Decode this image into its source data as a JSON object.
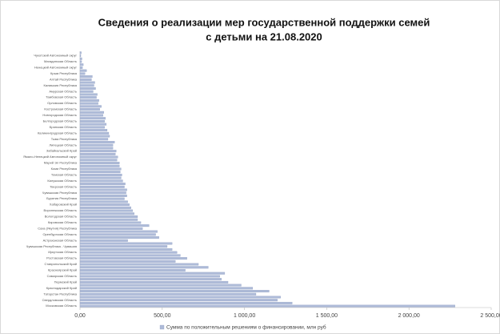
{
  "chart_data": {
    "type": "barh",
    "title": [
      "Сведения о реализации мер государственной поддержки семей",
      "с детьми на 21.08.2020"
    ],
    "categories": [
      null,
      "Чукотский Автономный округ",
      null,
      "Магаданская Область",
      null,
      "Ненецкий Автономный округ",
      null,
      "Крым Республика",
      null,
      "Алтай Республика",
      null,
      "Калмыкия Республика",
      null,
      "Амурская Область",
      null,
      "Тамбовская Область",
      null,
      "Орловская Область",
      null,
      "Костромская Область",
      null,
      "Новгородская Область",
      null,
      "Белгородская Область",
      null,
      "Брянская Область",
      null,
      "Калининградская Область",
      null,
      "Тыва Республика",
      null,
      "Липецкая Область",
      null,
      "Забайкальский Край",
      null,
      "Ямало-Ненецкий Автономный округ",
      null,
      "Марий Эл Республика",
      null,
      "Коми Республика",
      null,
      "Томская Область",
      null,
      "Калужская Область",
      null,
      "Тверская Область",
      null,
      "Чувашская Республика",
      null,
      "Бурятия Республика",
      null,
      "Хабаровский Край",
      null,
      "Воронежская Область",
      null,
      "Вологодская Область",
      null,
      "Кировская Область",
      null,
      "Саха (Якутия) Республика",
      null,
      "Оренбургская Область",
      null,
      "Астраханская Область",
      null,
      "Чувашская Республика - Чувашия",
      null,
      "Иркутская Область",
      null,
      "Ростовская Область",
      null,
      "Ставропольский Край",
      null,
      "Красноярский Край",
      null,
      "Самарская Область",
      null,
      "Пермский Край",
      null,
      "Краснодарский Край",
      null,
      "Татарстан Республика",
      null,
      "Свердловская Область",
      null,
      "Московская Область"
    ],
    "series": [
      {
        "name": "Сумма по положительным решениям о финансировании, млн руб",
        "color": "#aebbd8",
        "values": [
          8,
          5,
          12,
          10,
          20,
          15,
          40,
          30,
          75,
          70,
          90,
          85,
          95,
          80,
          105,
          100,
          115,
          110,
          130,
          120,
          145,
          140,
          155,
          150,
          160,
          150,
          165,
          175,
          180,
          170,
          210,
          200,
          200,
          220,
          215,
          230,
          225,
          240,
          240,
          250,
          245,
          255,
          250,
          260,
          275,
          270,
          285,
          280,
          285,
          270,
          290,
          300,
          310,
          320,
          330,
          350,
          350,
          370,
          420,
          380,
          470,
          460,
          480,
          290,
          560,
          530,
          560,
          590,
          610,
          650,
          580,
          720,
          780,
          640,
          880,
          850,
          860,
          900,
          980,
          1050,
          1150,
          1070,
          1220,
          1200,
          1290,
          2280
        ]
      }
    ],
    "xlim": [
      0,
      2500
    ],
    "xticks": [
      {
        "value": 0,
        "label": "0,00"
      },
      {
        "value": 500,
        "label": "500,00"
      },
      {
        "value": 1000,
        "label": "1 000,00"
      },
      {
        "value": 1500,
        "label": "1 500,00"
      },
      {
        "value": 2000,
        "label": "2 000,00"
      },
      {
        "value": 2500,
        "label": "2 500,00"
      }
    ],
    "legend": "bottom"
  }
}
